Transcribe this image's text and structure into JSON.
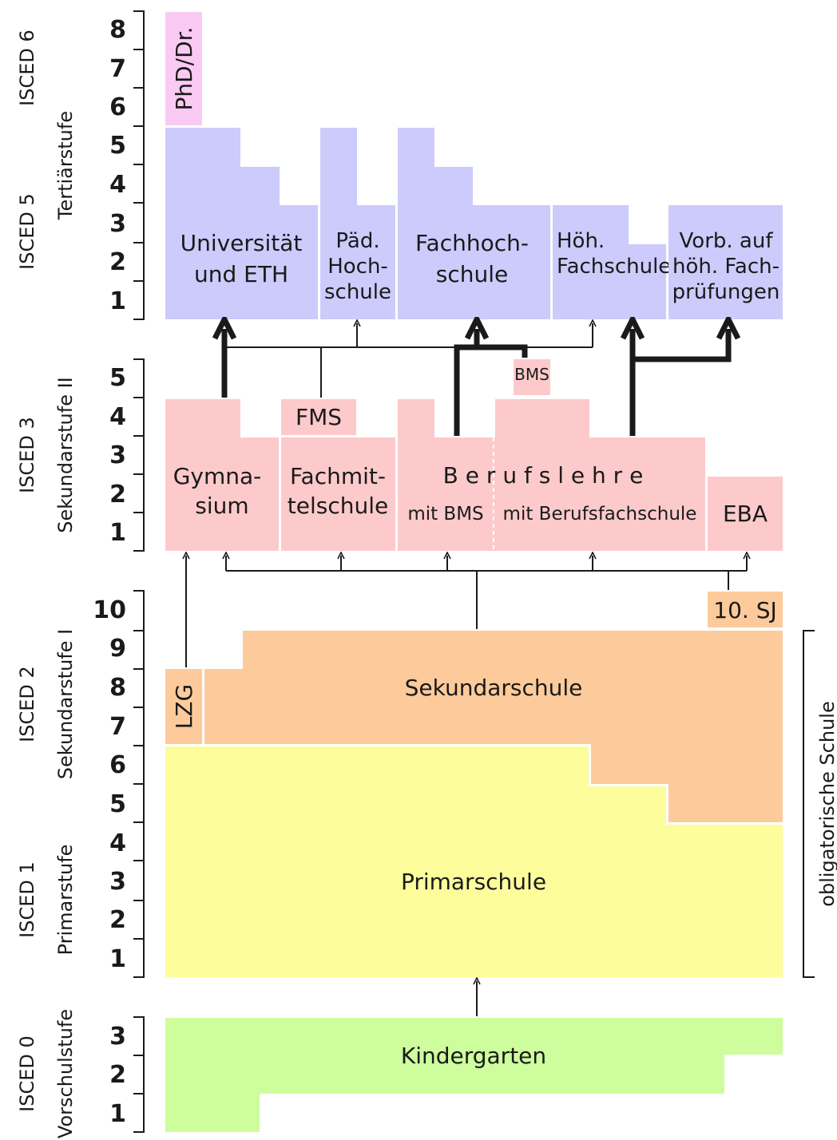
{
  "colors": {
    "tertiary": "#cccbfc",
    "doctorate": "#fbcaf4",
    "secondary2": "#fdcacb",
    "secondary1": "#fdcb9b",
    "primary": "#fdfd9c",
    "kindergarten": "#cdfd9c"
  },
  "levels": {
    "isced6": "ISCED 6",
    "isced5": "ISCED 5",
    "tertiaerstufe": "Tertiärstufe",
    "isced3": "ISCED 3",
    "sekundarstufe2": "Sekundarstufe II",
    "isced2": "ISCED 2",
    "sekundarstufe1": "Sekundarstufe I",
    "isced1": "ISCED 1",
    "primarstufe": "Primarstufe",
    "isced0": "ISCED 0",
    "vorschulstufe": "Vorschulstufe",
    "obligatorisch": "obligatorische Schule"
  },
  "scales": {
    "tertiary": [
      "1",
      "2",
      "3",
      "4",
      "5",
      "6",
      "7",
      "8"
    ],
    "secondary2": [
      "1",
      "2",
      "3",
      "4",
      "5"
    ],
    "secondary1": [
      "1",
      "2",
      "3",
      "4",
      "5",
      "6",
      "7",
      "8",
      "9",
      "10"
    ],
    "preschool": [
      "1",
      "2",
      "3"
    ]
  },
  "blocks": {
    "phd": "PhD/Dr.",
    "uni_1": "Universität",
    "uni_2": "und ETH",
    "paed_1": "Päd.",
    "paed_2": "Hoch-",
    "paed_3": "schule",
    "fh_1": "Fachhoch-",
    "fh_2": "schule",
    "hf_1": "Höh.",
    "hf_2": "Fachschule",
    "vorb_1": "Vorb. auf",
    "vorb_2": "höh. Fach-",
    "vorb_3": "prüfungen",
    "bms_small": "BMS",
    "fms": "FMS",
    "gym_1": "Gymna-",
    "gym_2": "sium",
    "fachmit_1": "Fachmit-",
    "fachmit_2": "telschule",
    "berufslehre": "B e r u f s l e h r e",
    "mit_bms": "mit BMS",
    "mit_bfs": "mit Berufsfachschule",
    "eba": "EBA",
    "sj10": "10. SJ",
    "lzg": "LZG",
    "sekundarschule": "Sekundarschule",
    "primarschule": "Primarschule",
    "kindergarten": "Kindergarten"
  }
}
